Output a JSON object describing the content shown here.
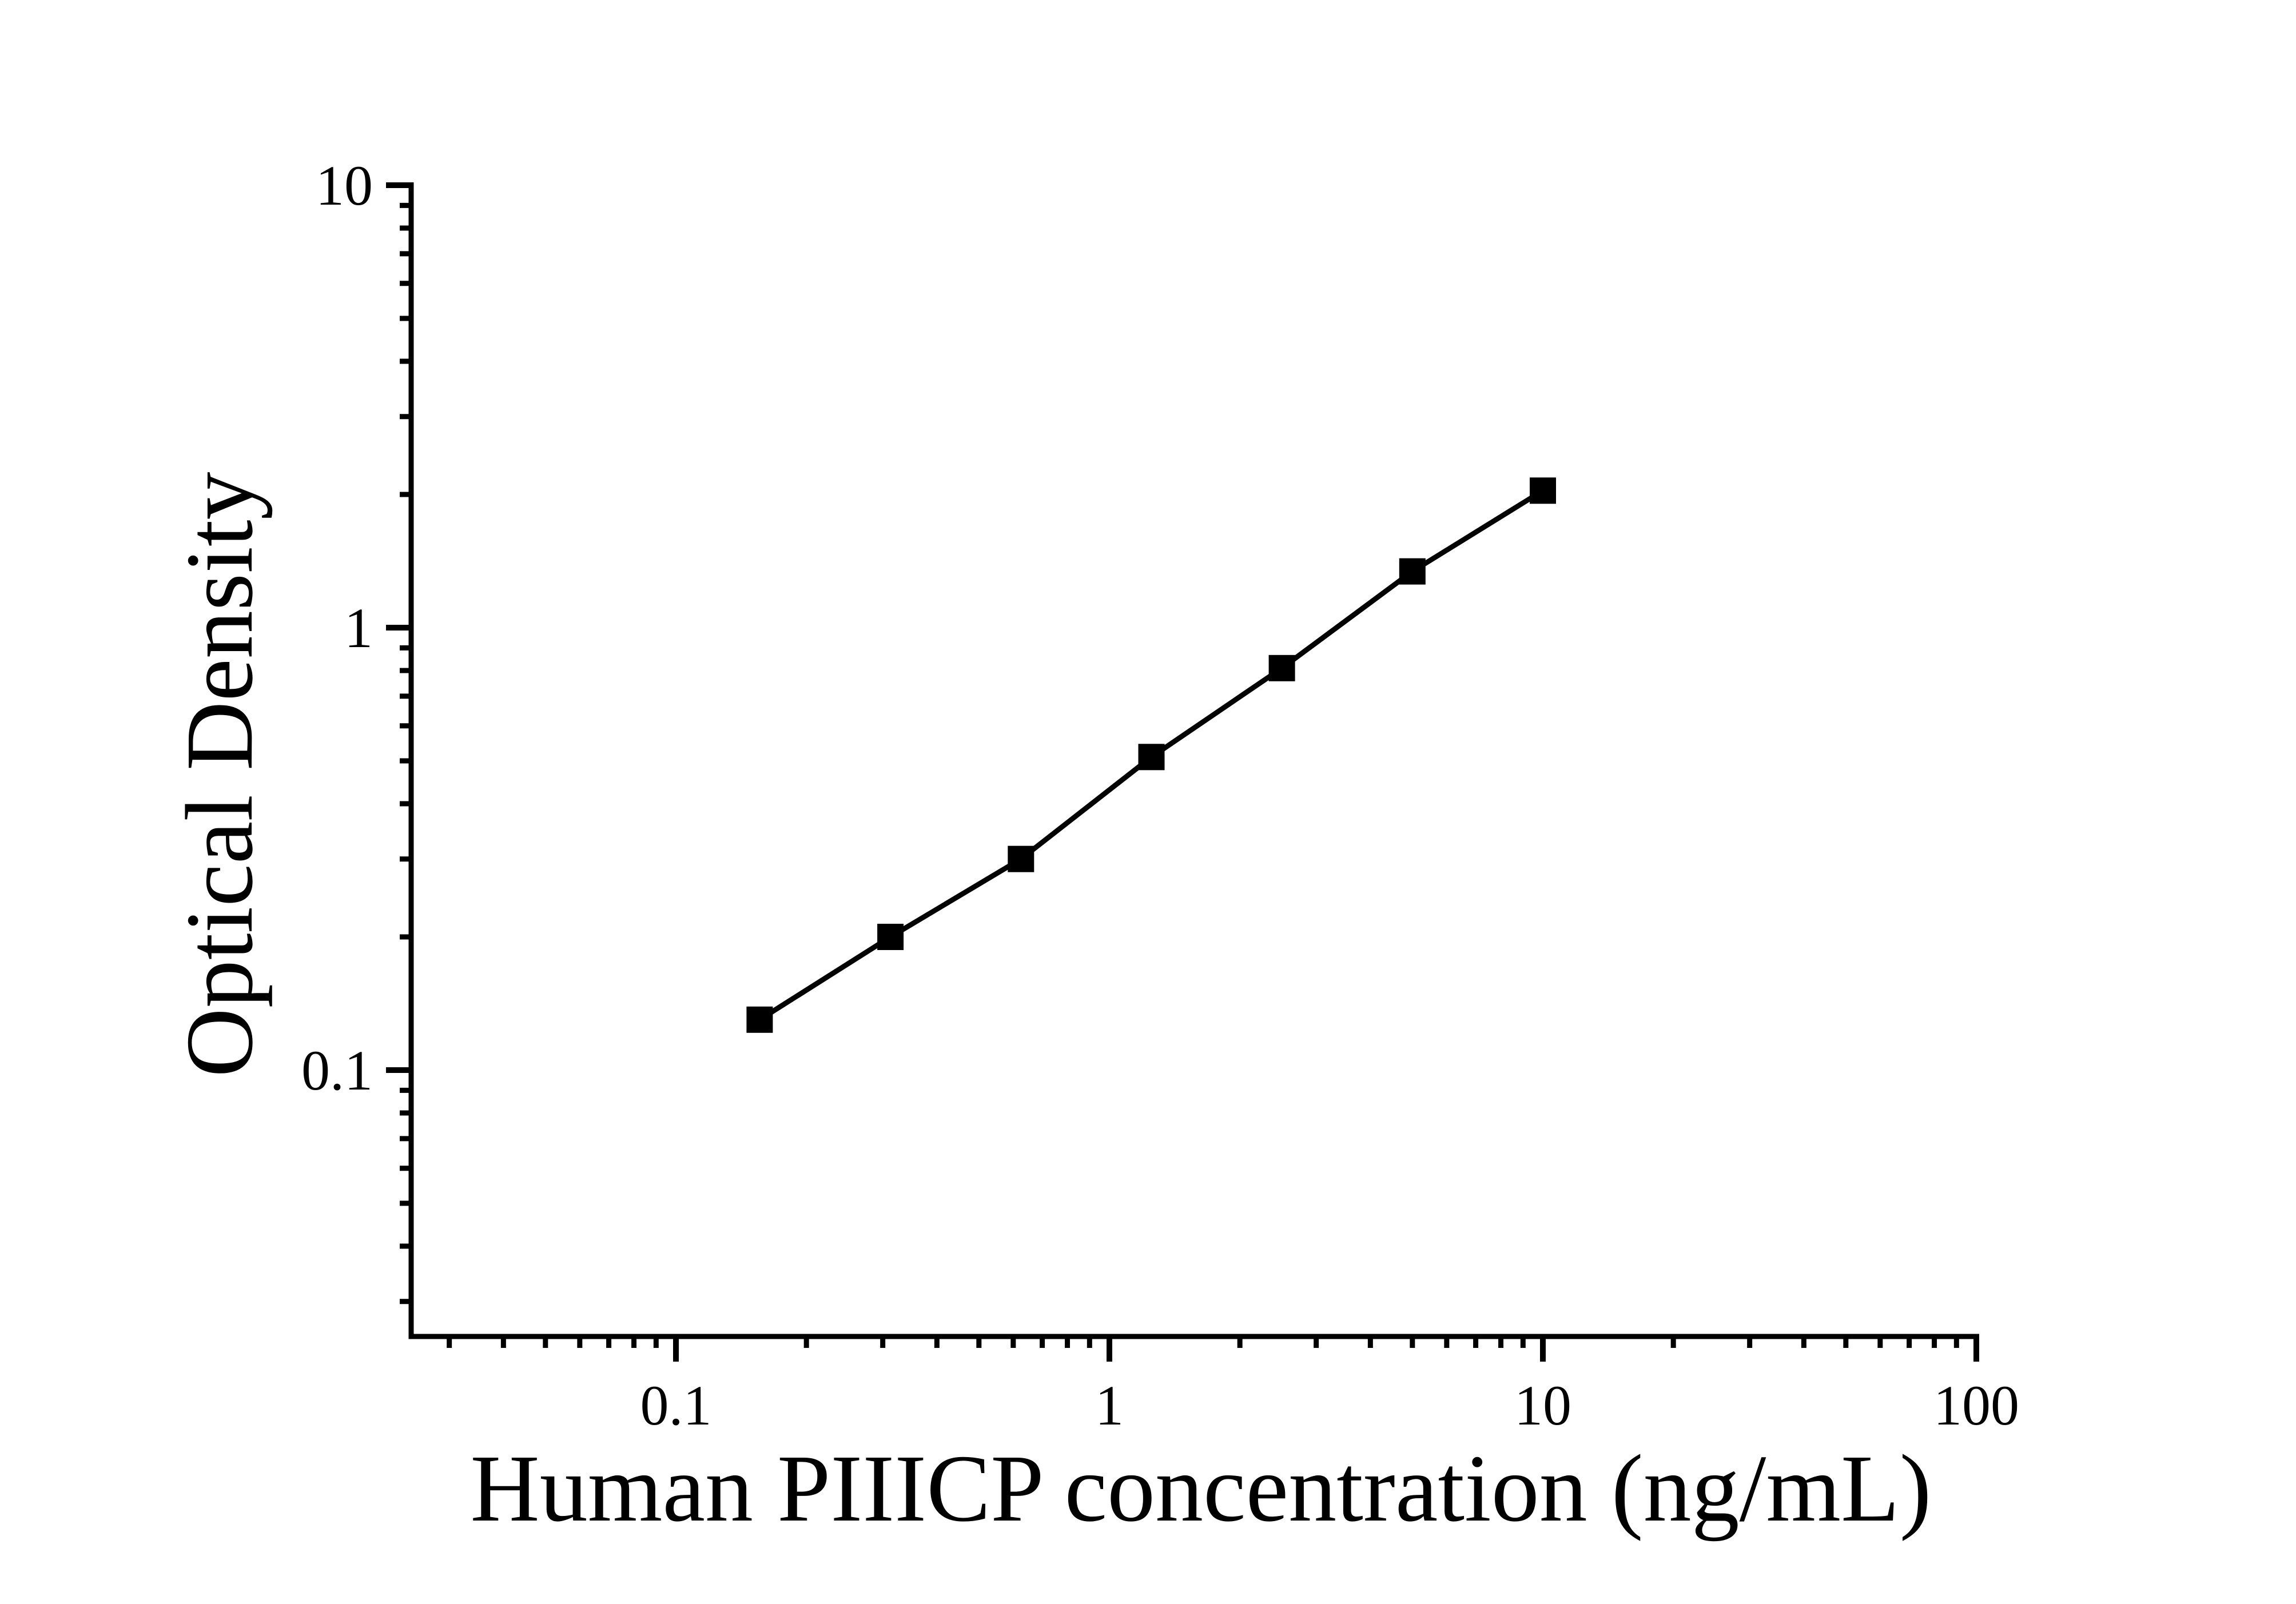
{
  "chart_data": {
    "type": "line",
    "title": "",
    "xlabel": "Human PIIICP concentration (ng/mL)",
    "ylabel": "Optical Density",
    "x_scale": "log",
    "y_scale": "log",
    "xlim": [
      0.0244,
      100
    ],
    "ylim": [
      0.0249,
      10
    ],
    "grid": false,
    "legend": "none",
    "background_color": "#ffffff",
    "line_color": "#000000",
    "marker": "filled-square",
    "marker_color": "#000000",
    "x_major_ticks": {
      "values": [
        0.1,
        1,
        10,
        100
      ],
      "labels": [
        "0.1",
        "1",
        "10",
        "100"
      ]
    },
    "y_major_ticks": {
      "values": [
        0.1,
        1,
        10
      ],
      "labels": [
        "0.1",
        "1",
        "10"
      ]
    },
    "minor_ticks": "log-decades-2-to-9",
    "series": [
      {
        "name": "standard-curve",
        "points": [
          {
            "x": 0.156,
            "y": 0.13
          },
          {
            "x": 0.3125,
            "y": 0.2
          },
          {
            "x": 0.625,
            "y": 0.3
          },
          {
            "x": 1.25,
            "y": 0.51
          },
          {
            "x": 2.5,
            "y": 0.81
          },
          {
            "x": 5,
            "y": 1.34
          },
          {
            "x": 10,
            "y": 2.04
          }
        ]
      }
    ]
  }
}
